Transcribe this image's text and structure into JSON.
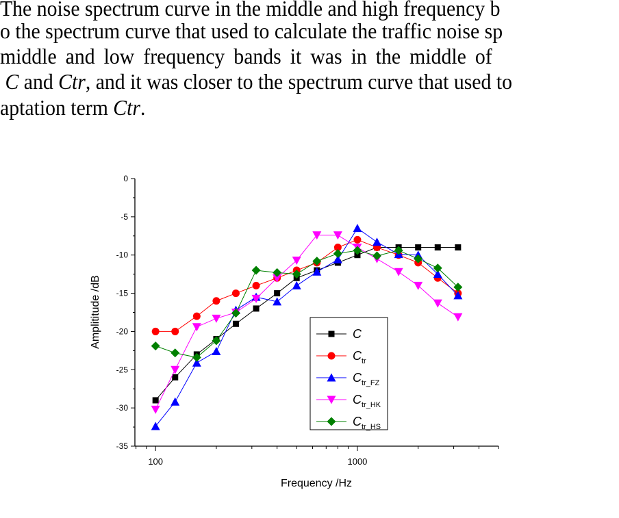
{
  "paragraph": {
    "lines": [
      "The noise spectrum curve in the middle and high frequency b",
      "o the spectrum curve that used to calculate the traffic noise sp",
      "middle  and  low  frequency  bands  it  was  in  the  middle  of",
      [
        "",
        "C",
        " and ",
        "Ctr",
        ", and it was closer to the spectrum curve that used to"
      ],
      [
        "aptation term ",
        "Ctr",
        "."
      ]
    ]
  },
  "chart_data": {
    "type": "line",
    "xlabel": "Frequency /Hz",
    "ylabel": "Amplititude /dB",
    "xscale": "log",
    "xlim": [
      79,
      5000
    ],
    "ylim": [
      -35,
      0
    ],
    "xticks": [
      100,
      1000
    ],
    "xtick_labels": [
      "100",
      "1000"
    ],
    "yticks": [
      0,
      -5,
      -10,
      -15,
      -20,
      -25,
      -30,
      -35
    ],
    "ytick_labels": [
      "0",
      "-5",
      "-10",
      "-15",
      "-20",
      "-25",
      "-30",
      "-35"
    ],
    "grid": false,
    "legend_placement": "lower-center",
    "x": [
      100,
      125,
      160,
      200,
      250,
      315,
      400,
      500,
      630,
      800,
      1000,
      1250,
      1600,
      2000,
      2500,
      3150
    ],
    "series": [
      {
        "name": "C",
        "sub": "",
        "color": "#000000",
        "marker": "square",
        "values": [
          -29,
          -26,
          -23,
          -21,
          -19,
          -17,
          -15,
          -13,
          -12,
          -11,
          -10,
          -9,
          -9,
          -9,
          -9,
          -9
        ]
      },
      {
        "name": "C",
        "sub": "tr",
        "color": "#ff0000",
        "marker": "circle",
        "values": [
          -20,
          -20,
          -18,
          -16,
          -15,
          -14,
          -13,
          -12,
          -11,
          -9,
          -8,
          -9,
          -10,
          -11,
          -13,
          -15
        ]
      },
      {
        "name": "C",
        "sub": "tr_FZ",
        "color": "#0000ff",
        "marker": "triangle-up",
        "values": [
          -32.4,
          -29.2,
          -24.1,
          -22.6,
          -17.2,
          -15.5,
          -16.1,
          -14,
          -12.2,
          -10.6,
          -6.5,
          -8.3,
          -9.9,
          -10,
          -12.5,
          -15.3
        ]
      },
      {
        "name": "C",
        "sub": "tr_HK",
        "color": "#ff00ff",
        "marker": "triangle-down",
        "values": [
          -30.2,
          -25,
          -19.4,
          -18.3,
          -17.5,
          -15.7,
          -13,
          -10.7,
          -7.4,
          -7.4,
          -9,
          -10.5,
          -12.2,
          -14,
          -16.3,
          -18.1
        ]
      },
      {
        "name": "C",
        "sub": "tr_HS",
        "color": "#008000",
        "marker": "diamond",
        "values": [
          -21.9,
          -22.8,
          -23.4,
          -21.2,
          -17.6,
          -12,
          -12.3,
          -12.5,
          -10.8,
          -9.8,
          -9.4,
          -10.1,
          -9.4,
          -10.5,
          -11.7,
          -14.2
        ]
      }
    ]
  }
}
